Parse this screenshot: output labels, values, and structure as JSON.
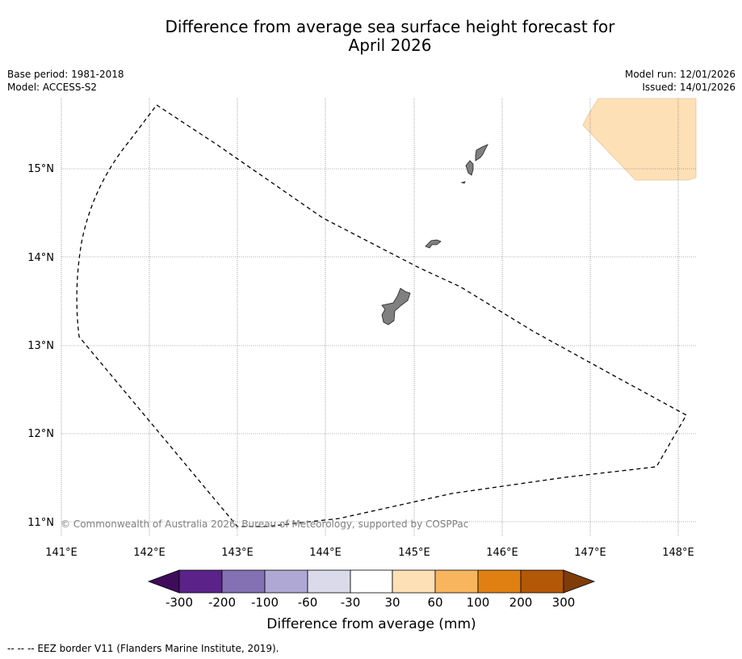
{
  "title": {
    "line1": "Difference from average sea surface height forecast for",
    "line2": "April 2026"
  },
  "meta_left": {
    "base_period": "Base period: 1981-2018",
    "model": "Model: ACCESS-S2"
  },
  "meta_right": {
    "model_run": "Model run: 12/01/2026",
    "issued": "Issued: 14/01/2026"
  },
  "map": {
    "lon_labels": [
      "141°E",
      "142°E",
      "143°E",
      "144°E",
      "145°E",
      "146°E",
      "147°E",
      "148°E"
    ],
    "lat_labels": [
      "15°N",
      "14°N",
      "13°N",
      "12°N",
      "11°N"
    ],
    "lon_range": [
      141.0,
      148.2
    ],
    "lat_range": [
      10.8,
      15.8
    ],
    "copyright": "© Commonwealth of Australia 2026, Bureau of Meteorology, supported by COSPPac",
    "land_color": "#808080",
    "anomaly_patch_color": "#fde0b6"
  },
  "colorbar": {
    "tick_labels": [
      "-300",
      "-200",
      "-100",
      "-60",
      "-30",
      "30",
      "60",
      "100",
      "200",
      "300"
    ],
    "colors": [
      "#3f0c5c",
      "#5b2389",
      "#8471b3",
      "#b0a8d4",
      "#dadaeb",
      "#ffffff",
      "#fde0b6",
      "#f8b55e",
      "#e08013",
      "#b35806",
      "#7f3b08"
    ],
    "label": "Difference from average (mm)"
  },
  "footer": {
    "legend": "--  --  -- EEZ border V11 (Flanders Marine Institute, 2019)."
  }
}
